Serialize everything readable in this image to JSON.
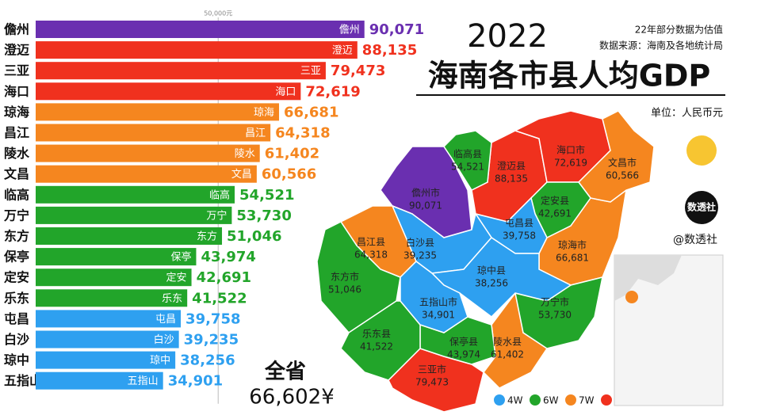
{
  "chart_data": {
    "type": "bar",
    "title": "2022",
    "subtitle": "海南各市县人均GDP",
    "note": "22年部分数据为估值",
    "source": "数据来源：海南及各地统计局",
    "unit": "单位：人民币元",
    "categories": [
      "儋州",
      "澄迈",
      "三亚",
      "海口",
      "琼海",
      "昌江",
      "陵水",
      "文昌",
      "临高",
      "万宁",
      "东方",
      "保亭",
      "定安",
      "乐东",
      "屯昌",
      "白沙",
      "琼中",
      "五指山"
    ],
    "values": [
      90071,
      88135,
      79473,
      72619,
      66681,
      64318,
      61402,
      60566,
      54521,
      53730,
      51046,
      43974,
      42691,
      41522,
      39758,
      39235,
      38256,
      34901
    ],
    "value_labels": [
      "90,071",
      "88,135",
      "79,473",
      "72,619",
      "66,681",
      "64,318",
      "61,402",
      "60,566",
      "54,521",
      "53,730",
      "51,046",
      "43,974",
      "42,691",
      "41,522",
      "39,758",
      "39,235",
      "38,256",
      "34,901"
    ],
    "colors": [
      "#6a2fb0",
      "#f0311e",
      "#f0311e",
      "#f0311e",
      "#f5861f",
      "#f5861f",
      "#f5861f",
      "#f5861f",
      "#22a52a",
      "#22a52a",
      "#22a52a",
      "#22a52a",
      "#22a52a",
      "#22a52a",
      "#2ea0f0",
      "#2ea0f0",
      "#2ea0f0",
      "#2ea0f0"
    ],
    "xlim": [
      0,
      91000
    ],
    "xticks": [
      {
        "value": 50000,
        "label": "50,000元"
      }
    ],
    "grid": true,
    "legend": [
      {
        "label": "4W",
        "color": "#2ea0f0"
      },
      {
        "label": "6W",
        "color": "#22a52a"
      },
      {
        "label": "7W",
        "color": "#f5861f"
      },
      {
        "color": "#f0311e"
      }
    ]
  },
  "map": {
    "names": [
      "儋州市",
      "澄迈县",
      "三亚市",
      "海口市",
      "琼海市",
      "昌江县",
      "陵水县",
      "文昌市",
      "临高县",
      "万宁市",
      "东方市",
      "保亭县",
      "定安县",
      "乐东县",
      "屯昌县",
      "白沙县",
      "琼中县",
      "五指山市"
    ]
  },
  "total": {
    "label": "全省",
    "value_label": "66,602¥"
  },
  "brand": {
    "logo": "数透社",
    "handle": "@数透社"
  }
}
